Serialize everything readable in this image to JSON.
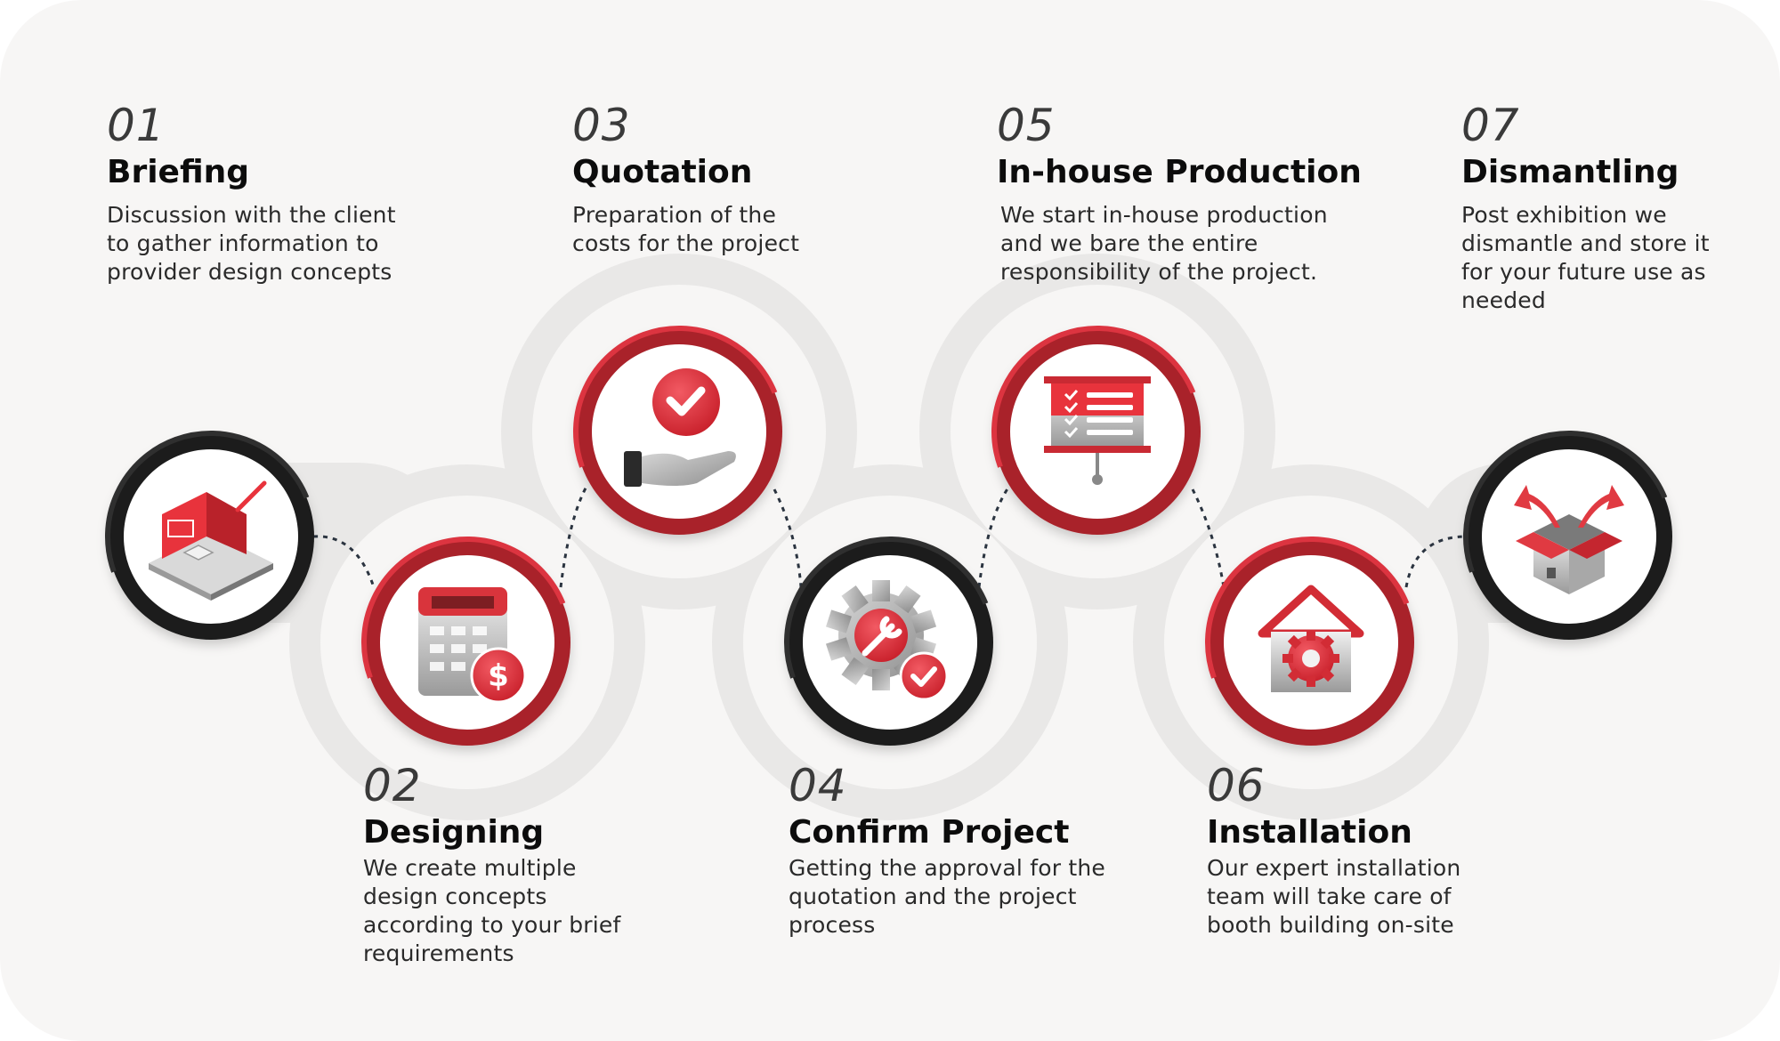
{
  "colors": {
    "background": "#f7f6f5",
    "ring_red": "#dc3440",
    "ring_red_dark": "#a9232b",
    "ring_dark": "#2f2f2f",
    "wave": "#e9e8e7",
    "connector": "#2b3440"
  },
  "steps": [
    {
      "number": "01",
      "title": "Briefing",
      "description": "Discussion with the client to gather information to provider design concepts",
      "icon": "booth-design-icon",
      "ring": "dark"
    },
    {
      "number": "02",
      "title": "Designing",
      "description": "We create multiple design concepts according to your brief requirements",
      "icon": "calculator-dollar-icon",
      "ring": "red"
    },
    {
      "number": "03",
      "title": "Quotation",
      "description": "Preparation of the costs for the project",
      "icon": "hand-heart-icon",
      "ring": "red"
    },
    {
      "number": "04",
      "title": "Confirm Project",
      "description": "Getting the approval for the quotation and the project process",
      "icon": "gear-wrench-check-icon",
      "ring": "dark"
    },
    {
      "number": "05",
      "title": "In-house Production",
      "description": "We start in-house production and we bare the entire responsibility of the project.",
      "icon": "presentation-board-icon",
      "ring": "red"
    },
    {
      "number": "06",
      "title": "Installation",
      "description": "Our expert installation team will take care of booth building on-site",
      "icon": "house-gear-icon",
      "ring": "red"
    },
    {
      "number": "07",
      "title": "Dismantling",
      "description": "Post exhibition we dismantle and store it for your future use as needed",
      "icon": "open-box-arrows-icon",
      "ring": "dark"
    }
  ]
}
